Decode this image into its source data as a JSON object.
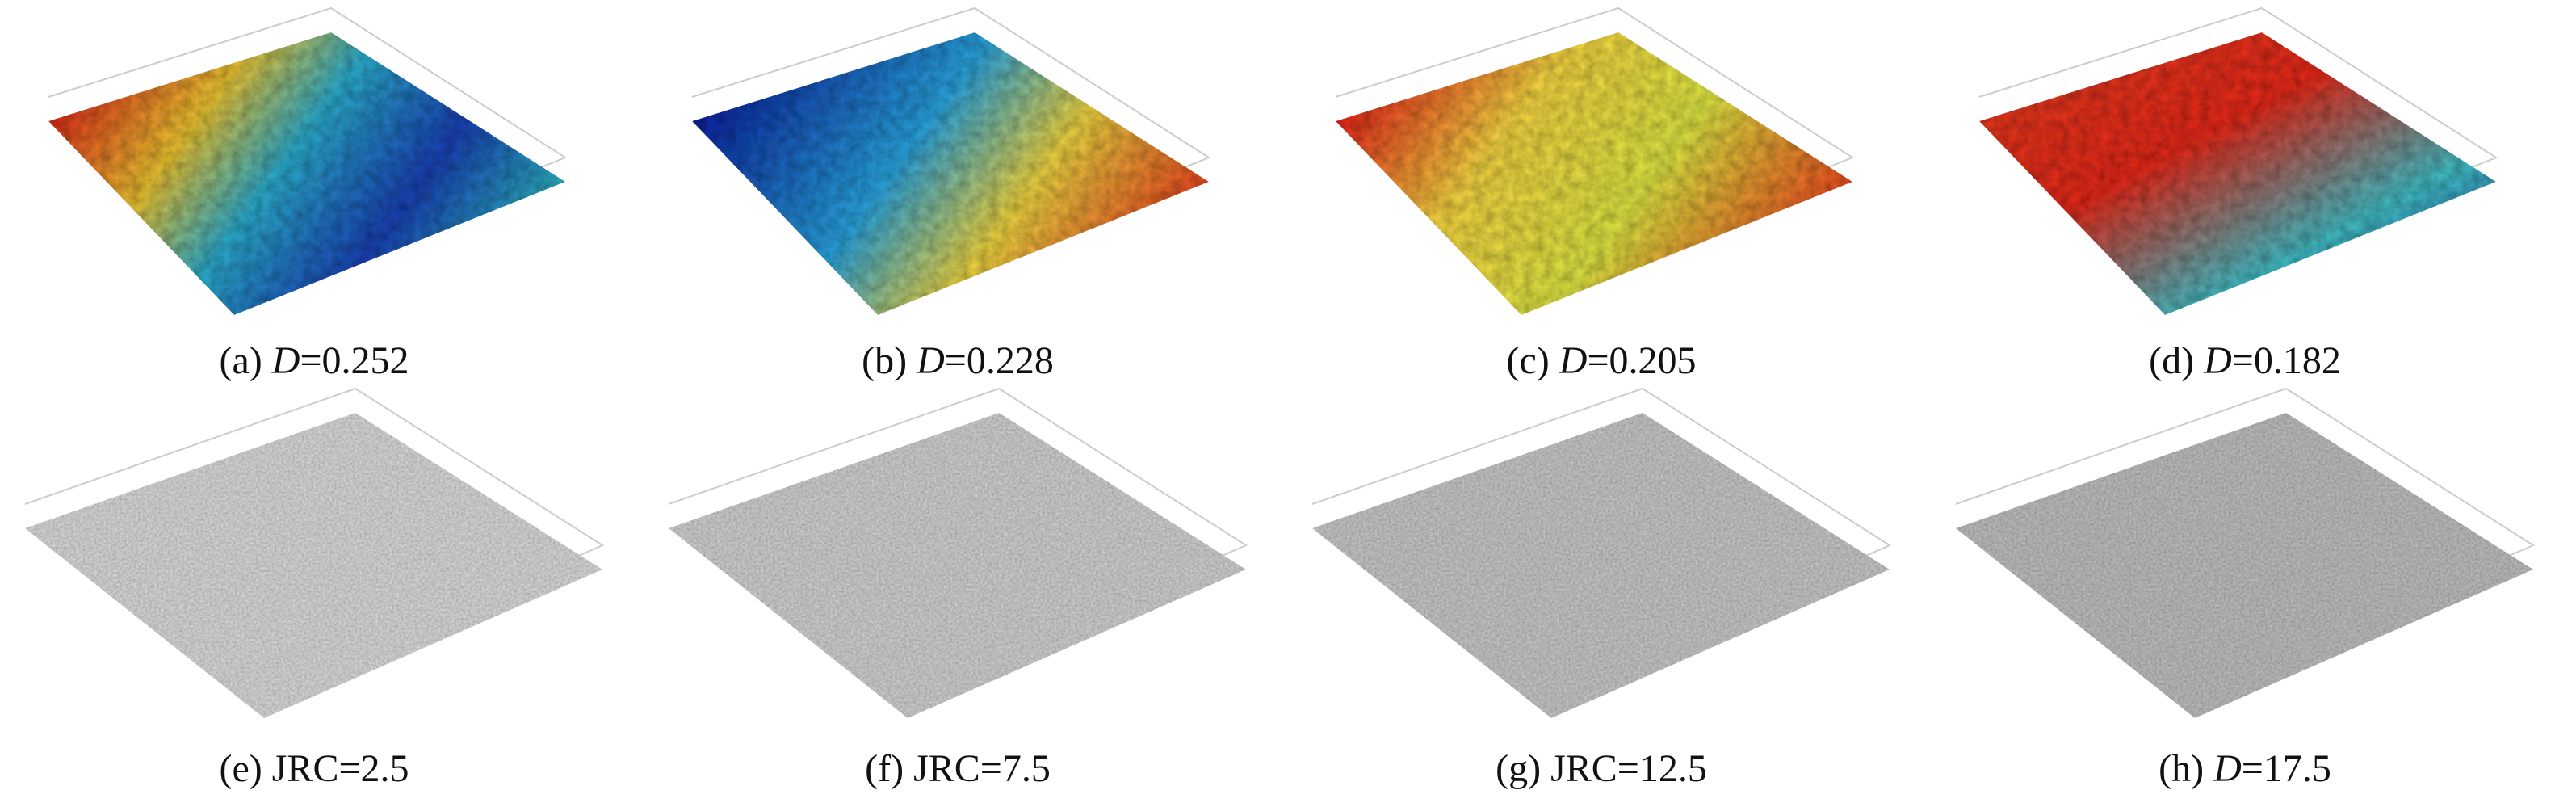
{
  "panels": [
    {
      "label": "(a)",
      "variable": "D",
      "value": "=0.252"
    },
    {
      "label": "(b)",
      "variable": "D",
      "value": "=0.228"
    },
    {
      "label": "(c)",
      "variable": "D",
      "value": "=0.205"
    },
    {
      "label": "(d)",
      "variable": "D",
      "value": "=0.182"
    },
    {
      "label": "(e)",
      "text": "JRC=2.5"
    },
    {
      "label": "(f)",
      "text": "JRC=7.5"
    },
    {
      "label": "(g)",
      "text": "JRC=12.5"
    },
    {
      "label": "(h)",
      "variable": "D",
      "value": "=17.5"
    }
  ]
}
